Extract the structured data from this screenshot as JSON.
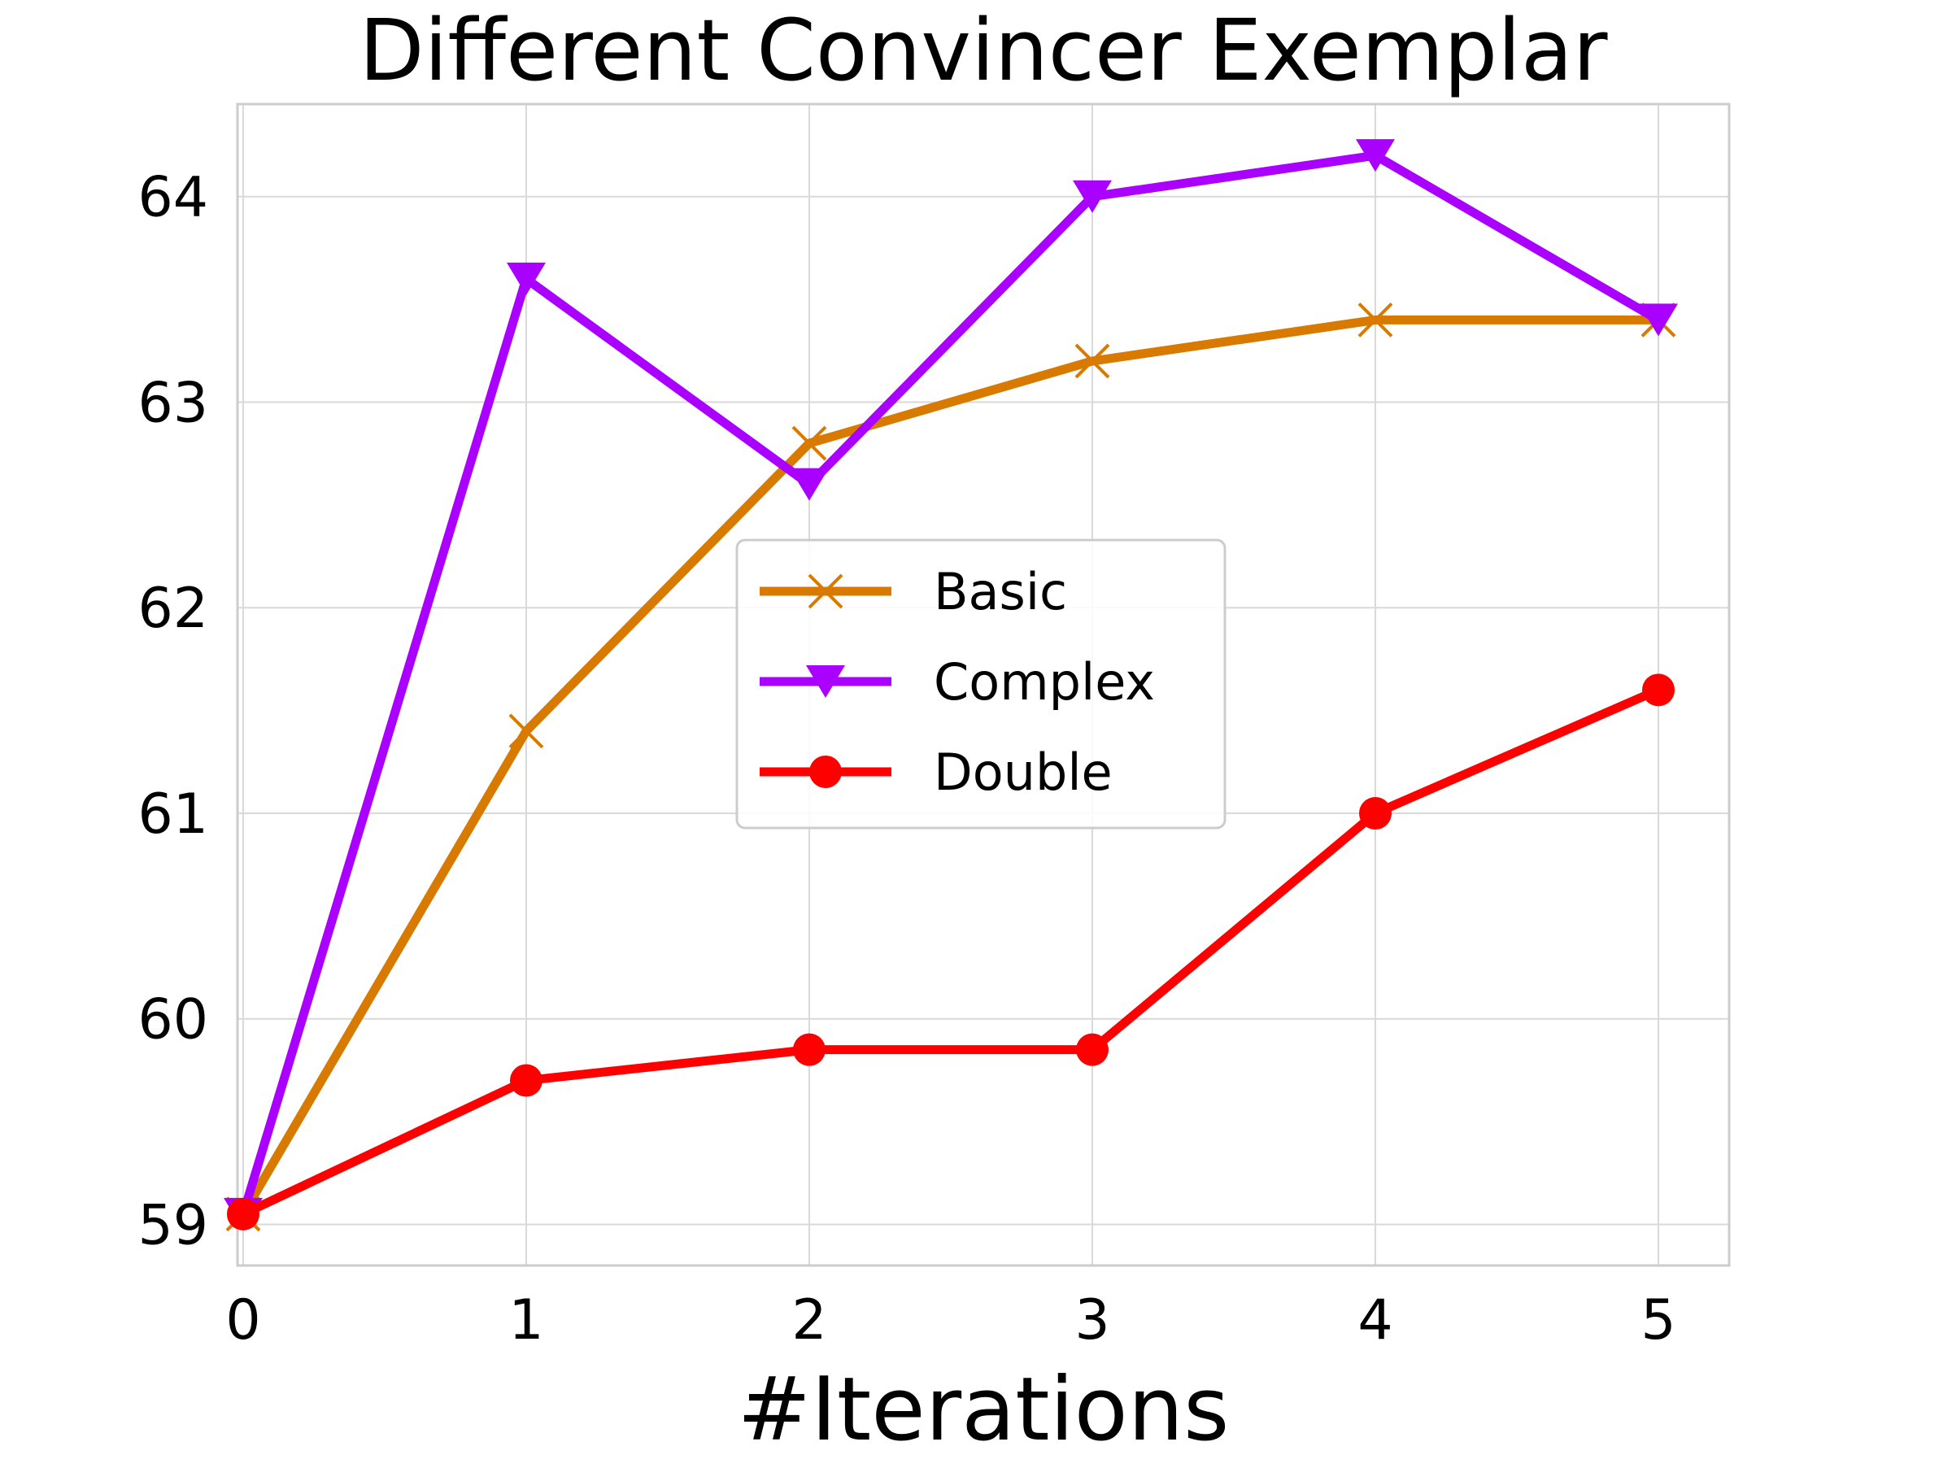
{
  "chart_data": {
    "type": "line",
    "title": "Different Convincer Exemplar",
    "xlabel": "#Iterations",
    "ylabel": "",
    "x": [
      0,
      1,
      2,
      3,
      4,
      5
    ],
    "xlim": [
      -0.02,
      5.25
    ],
    "ylim": [
      58.8,
      64.45
    ],
    "xticks": [
      0,
      1,
      2,
      3,
      4,
      5
    ],
    "yticks": [
      59,
      60,
      61,
      62,
      63,
      64
    ],
    "grid": true,
    "legend_position": "center",
    "series": [
      {
        "name": "Basic",
        "marker": "x",
        "color": "#d97a00",
        "values": [
          59.05,
          61.4,
          62.8,
          63.2,
          63.4,
          63.4
        ]
      },
      {
        "name": "Complex",
        "marker": "triangle-down",
        "color": "#aa00ff",
        "values": [
          59.05,
          63.6,
          62.6,
          64.0,
          64.2,
          63.4
        ]
      },
      {
        "name": "Double",
        "marker": "circle",
        "color": "#ff0000",
        "values": [
          59.05,
          59.7,
          59.85,
          59.85,
          61.0,
          61.6
        ]
      }
    ]
  }
}
